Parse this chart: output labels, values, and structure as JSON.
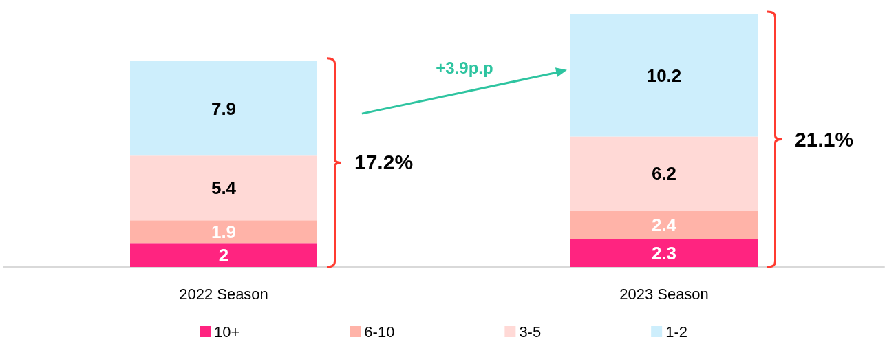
{
  "chart_data": {
    "type": "bar",
    "stacked": true,
    "data_labels": true,
    "legend": "bottom",
    "categories": [
      "2022 Season",
      "2023 Season"
    ],
    "series": [
      {
        "name": "10+",
        "color": "#ff2480",
        "values": [
          2,
          2.3
        ]
      },
      {
        "name": "6-10",
        "color": "#ffb3a8",
        "values": [
          1.9,
          2.4
        ]
      },
      {
        "name": "3-5",
        "color": "#ffd9d6",
        "values": [
          5.4,
          6.2
        ]
      },
      {
        "name": "1-2",
        "color": "#cdeefc",
        "values": [
          7.9,
          10.2
        ]
      }
    ],
    "totals": [
      "17.2%",
      "21.1%"
    ],
    "annotations": [
      "+3.9p.p"
    ]
  }
}
